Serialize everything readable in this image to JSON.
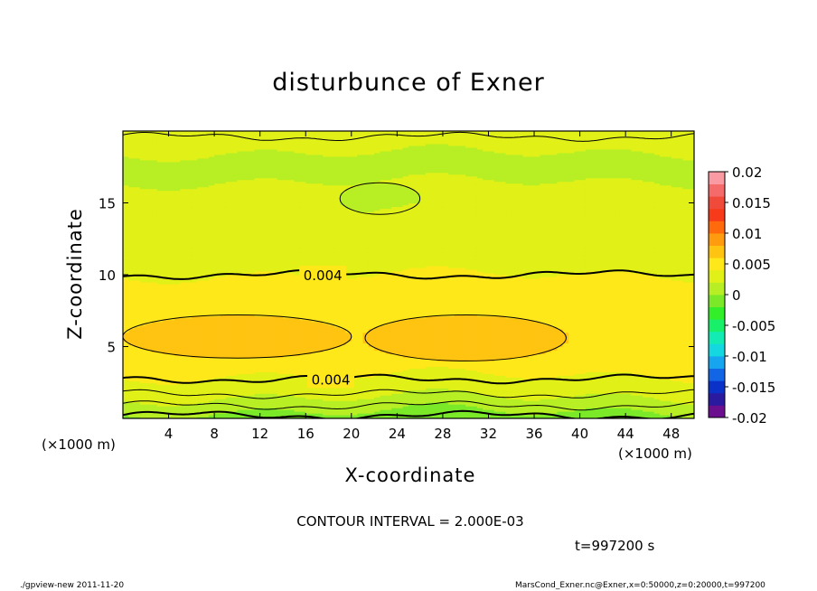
{
  "chart_data": {
    "type": "heatmap",
    "title": "disturbunce of Exner",
    "xlabel": "X-coordinate",
    "ylabel": "Z-coordinate",
    "x_unit_label": "(×1000 m)",
    "xlim": [
      0,
      50
    ],
    "ylim": [
      0,
      20
    ],
    "x_ticks": [
      4,
      8,
      12,
      16,
      20,
      24,
      28,
      32,
      36,
      40,
      44,
      48
    ],
    "y_ticks": [
      5,
      10,
      15
    ],
    "contour_interval_label": "CONTOUR INTERVAL = 2.000E-03",
    "time_label": "t=997200 s",
    "contour_labels": [
      {
        "text": "0.004",
        "x": 17.5,
        "z": 10.0
      },
      {
        "text": "0.004",
        "x": 18.2,
        "z": 2.75
      }
    ],
    "colorbar": {
      "tick_labels": [
        "0.02",
        "0.015",
        "0.01",
        "0.005",
        "0",
        "-0.005",
        "-0.01",
        "-0.015",
        "-0.02"
      ],
      "min": -0.02,
      "max": 0.02,
      "colors": [
        "#6b0f8f",
        "#2a1aa0",
        "#0b32c8",
        "#1266e6",
        "#15a6ef",
        "#13d8e0",
        "#12ecb4",
        "#18f06a",
        "#33ef2a",
        "#7be928",
        "#b8ef24",
        "#e1f017",
        "#ffe81a",
        "#ffc411",
        "#ff9b0e",
        "#ff6a0c",
        "#f73b1a",
        "#f04a3a",
        "#f56a6a",
        "#fa9aa2"
      ]
    },
    "bands": {
      "description_levels": "approx. field value at z levels (x-averaged)",
      "z": [
        0,
        0.5,
        1.0,
        1.5,
        2.0,
        2.5,
        3.0,
        4.0,
        5.0,
        6.0,
        7.0,
        8.0,
        9.0,
        10.0,
        11.0,
        12.0,
        13.0,
        14.0,
        15.0,
        16.0,
        17.0,
        18.0,
        19.0,
        20.0
      ],
      "value": [
        -0.001,
        0.0,
        0.001,
        0.002,
        0.003,
        0.0035,
        0.004,
        0.0048,
        0.0058,
        0.0056,
        0.0048,
        0.0045,
        0.0042,
        0.004,
        0.0036,
        0.0032,
        0.003,
        0.0028,
        0.0024,
        0.0021,
        0.0019,
        0.0019,
        0.0021,
        0.0024
      ]
    }
  },
  "footer": {
    "left": "./gpview-new  2011-11-20",
    "right": "MarsCond_Exner.nc@Exner,x=0:50000,z=0:20000,t=997200"
  }
}
